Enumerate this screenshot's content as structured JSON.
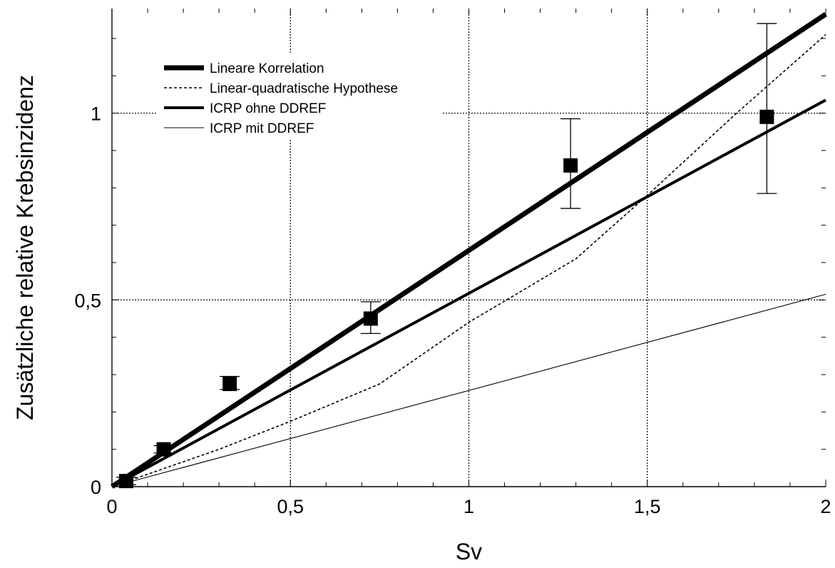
{
  "chart_data": {
    "type": "scatter",
    "title": "",
    "xlabel": "Sv",
    "ylabel": "Zusätzliche relative Krebsinzidenz",
    "xlim": [
      0,
      2
    ],
    "ylim": [
      0,
      1.28
    ],
    "x_ticks": [
      {
        "value": 0,
        "label": "0"
      },
      {
        "value": 0.5,
        "label": "0,5"
      },
      {
        "value": 1,
        "label": "1"
      },
      {
        "value": 1.5,
        "label": "1,5"
      },
      {
        "value": 2,
        "label": "2"
      }
    ],
    "y_ticks": [
      {
        "value": 0,
        "label": "0"
      },
      {
        "value": 0.5,
        "label": "0,5"
      },
      {
        "value": 1,
        "label": "1"
      }
    ],
    "grid": true,
    "legend_position": "top-left",
    "observations": {
      "points": [
        {
          "x": 0.04,
          "y": 0.015,
          "err_low": 0.005,
          "err_high": 0.025
        },
        {
          "x": 0.145,
          "y": 0.1,
          "err_low": 0.09,
          "err_high": 0.11
        },
        {
          "x": 0.33,
          "y": 0.275,
          "err_low": 0.26,
          "err_high": 0.295
        },
        {
          "x": 0.725,
          "y": 0.45,
          "err_low": 0.41,
          "err_high": 0.495
        },
        {
          "x": 1.285,
          "y": 0.86,
          "err_low": 0.745,
          "err_high": 0.985
        },
        {
          "x": 1.835,
          "y": 0.99,
          "err_low": 0.785,
          "err_high": 1.24
        }
      ]
    },
    "series": [
      {
        "name": "Lineare Korrelation",
        "style": "thick-solid",
        "x": [
          0,
          2
        ],
        "y": [
          0,
          1.265
        ]
      },
      {
        "name": "Linear-quadratische Hypothese",
        "style": "dashed",
        "x": [
          0,
          0.3,
          0.5,
          0.75,
          1.0,
          1.3,
          1.5,
          1.75,
          2.0
        ],
        "y": [
          0,
          0.1,
          0.175,
          0.275,
          0.44,
          0.61,
          0.78,
          1.0,
          1.21
        ]
      },
      {
        "name": "ICRP ohne DDREF",
        "style": "medium-solid",
        "x": [
          0,
          2
        ],
        "y": [
          0,
          1.035
        ]
      },
      {
        "name": "ICRP mit DDREF",
        "style": "thin-solid",
        "x": [
          0,
          2
        ],
        "y": [
          0,
          0.515
        ]
      }
    ]
  },
  "colors": {
    "line": "#000000",
    "grid": "#000000",
    "background": "#ffffff"
  }
}
